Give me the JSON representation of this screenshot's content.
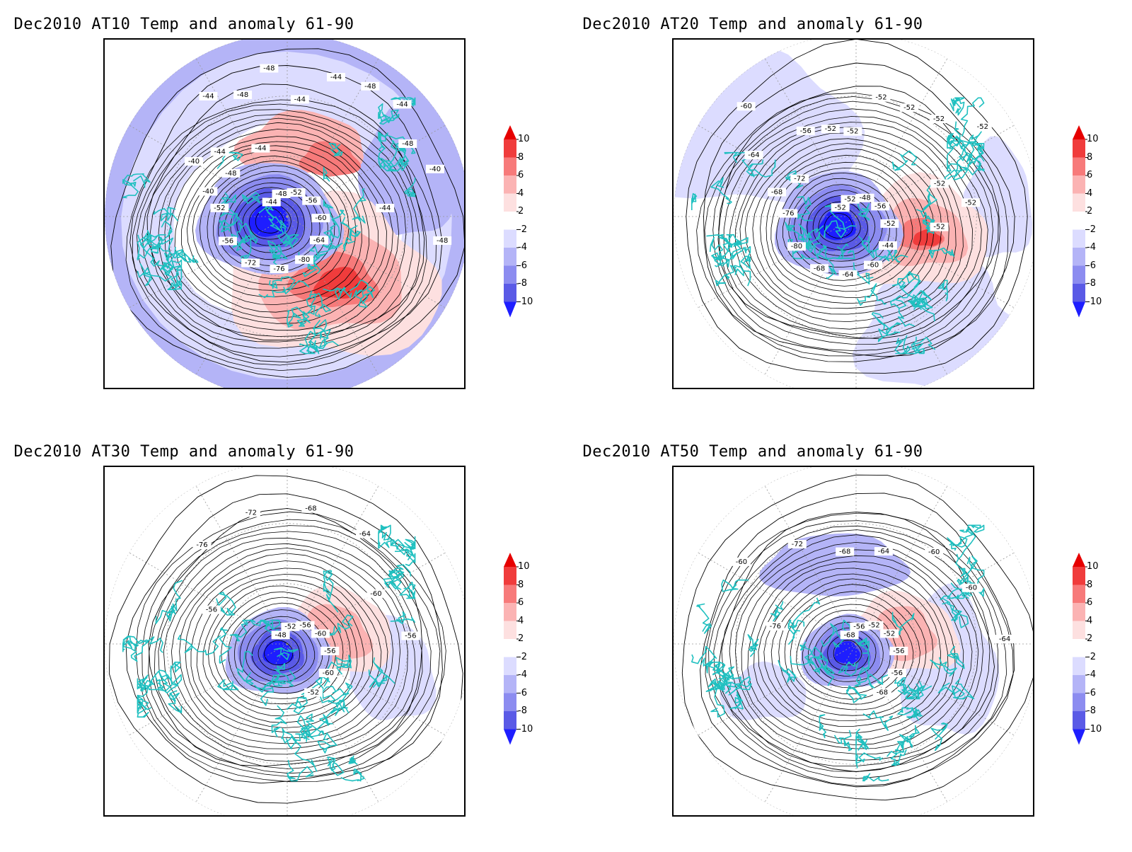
{
  "panels": [
    {
      "title": "Dec2010 AT10 Temp and anomaly 61-90",
      "vortex": {
        "cold_dx": -0.1,
        "cold_dy": 0.02,
        "warm_dir": [
          0.25,
          0.35
        ],
        "warm_strength": 1.0,
        "cold_strength": 1.0
      },
      "contour_labels": [
        "-44",
        "-48",
        "-52",
        "-56",
        "-60",
        "-64",
        "-80",
        "-76",
        "-72",
        "-56",
        "-52",
        "-48",
        "-44",
        "-40",
        "-40",
        "-44",
        "-44",
        "-48",
        "-48",
        "-44",
        "-44",
        "-48",
        "-44",
        "-48",
        "-40",
        "-44",
        "-48"
      ]
    },
    {
      "title": "Dec2010 AT20 Temp and anomaly 61-90",
      "vortex": {
        "cold_dx": -0.1,
        "cold_dy": 0.05,
        "warm_dir": [
          0.35,
          0.1
        ],
        "warm_strength": 0.55,
        "cold_strength": 0.9
      },
      "contour_labels": [
        "-52",
        "-52",
        "-48",
        "-56",
        "-52",
        "-44",
        "-60",
        "-64",
        "-68",
        "-80",
        "-76",
        "-72",
        "-68",
        "-64",
        "-60",
        "-56",
        "-52",
        "-52",
        "-52",
        "-52",
        "-52",
        "-52",
        "-52",
        "-52",
        "-52"
      ]
    },
    {
      "title": "Dec2010 AT30 Temp and anomaly 61-90",
      "vortex": {
        "cold_dx": -0.05,
        "cold_dy": 0.05,
        "warm_dir": [
          0.25,
          -0.05
        ],
        "warm_strength": 0.4,
        "cold_strength": 0.75
      },
      "contour_labels": [
        "-48",
        "-52",
        "-56",
        "-60",
        "-56",
        "-60",
        "-52",
        "-56",
        "-76",
        "-72",
        "-68",
        "-64",
        "-60",
        "-56"
      ]
    },
    {
      "title": "Dec2010 AT50 Temp and anomaly 61-90",
      "vortex": {
        "cold_dx": -0.05,
        "cold_dy": 0.05,
        "warm_dir": [
          0.25,
          -0.05
        ],
        "warm_strength": 0.35,
        "cold_strength": 0.65
      },
      "contour_labels": [
        "-68",
        "-56",
        "-52",
        "-52",
        "-56",
        "-56",
        "-68",
        "-76",
        "-60",
        "-72",
        "-68",
        "-64",
        "-60",
        "-60",
        "-64"
      ]
    }
  ],
  "colorbar": {
    "labels": [
      "10",
      "8",
      "6",
      "4",
      "2",
      "-2",
      "-4",
      "-6",
      "-8",
      "-10"
    ],
    "colors": [
      "#e60000",
      "#f03c3c",
      "#f77a7a",
      "#fbb3b3",
      "#fde0e0",
      "#ffffff",
      "#dcdcff",
      "#b4b4f7",
      "#8c8cf0",
      "#5a5ae6",
      "#1e1eff"
    ]
  },
  "colors": {
    "coast": "#20c0c0",
    "contour": "#000000",
    "grid": "#999999"
  }
}
